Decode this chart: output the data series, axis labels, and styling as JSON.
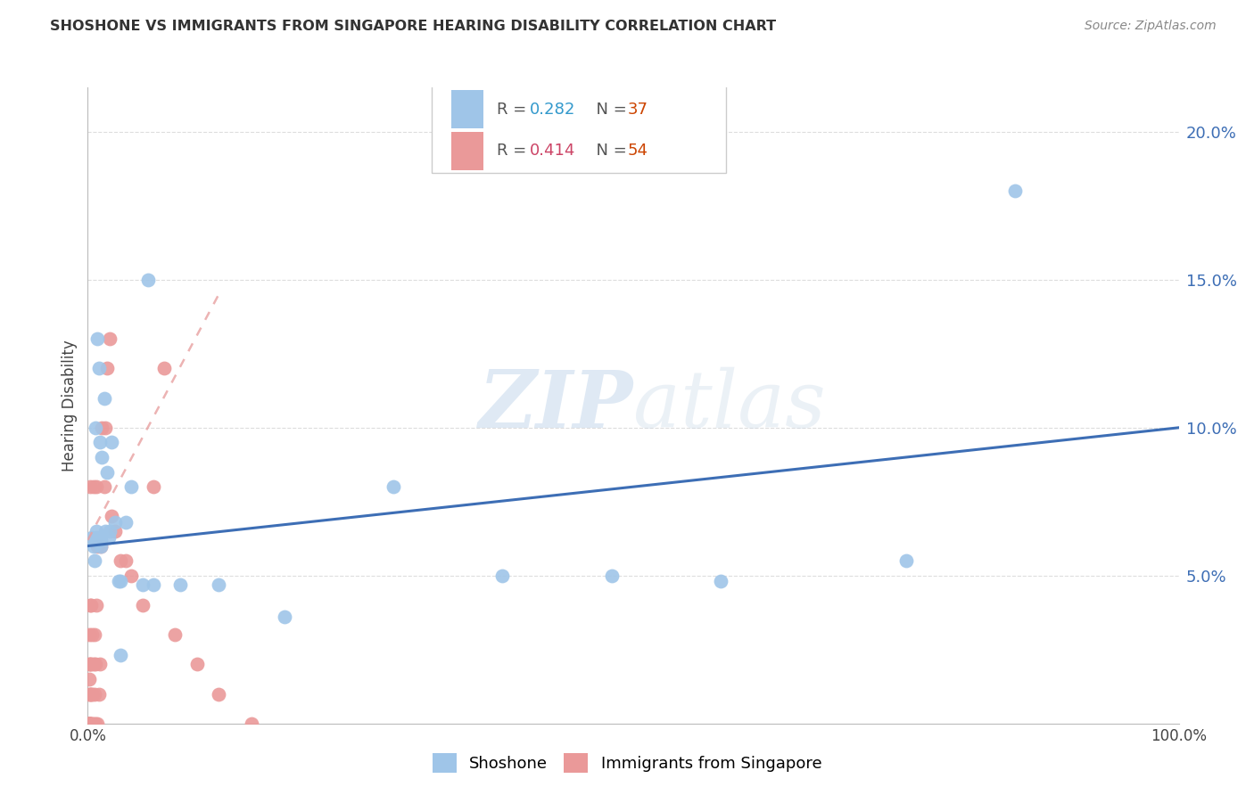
{
  "title": "SHOSHONE VS IMMIGRANTS FROM SINGAPORE HEARING DISABILITY CORRELATION CHART",
  "source": "Source: ZipAtlas.com",
  "ylabel": "Hearing Disability",
  "xlim": [
    0,
    1.0
  ],
  "ylim": [
    0,
    0.215
  ],
  "yticks": [
    0.05,
    0.1,
    0.15,
    0.2
  ],
  "ytick_labels": [
    "5.0%",
    "10.0%",
    "15.0%",
    "20.0%"
  ],
  "shoshone_color": "#9fc5e8",
  "singapore_color": "#ea9999",
  "shoshone_line_color": "#3d6eb5",
  "singapore_line_color": "#d5a0a0",
  "legend_shoshone_R": "0.282",
  "legend_shoshone_N": "37",
  "legend_singapore_R": "0.414",
  "legend_singapore_N": "54",
  "watermark_zip": "ZIP",
  "watermark_atlas": "atlas",
  "shoshone_x": [
    0.004,
    0.005,
    0.006,
    0.007,
    0.008,
    0.009,
    0.01,
    0.011,
    0.012,
    0.013,
    0.015,
    0.016,
    0.018,
    0.02,
    0.022,
    0.025,
    0.028,
    0.03,
    0.035,
    0.04,
    0.05,
    0.06,
    0.085,
    0.12,
    0.18,
    0.28,
    0.38,
    0.48,
    0.58,
    0.75,
    0.006,
    0.008,
    0.012,
    0.019,
    0.03,
    0.055,
    0.85
  ],
  "shoshone_y": [
    0.063,
    0.06,
    0.062,
    0.1,
    0.063,
    0.13,
    0.12,
    0.095,
    0.06,
    0.09,
    0.11,
    0.065,
    0.085,
    0.065,
    0.095,
    0.068,
    0.048,
    0.048,
    0.068,
    0.08,
    0.047,
    0.047,
    0.047,
    0.047,
    0.036,
    0.08,
    0.05,
    0.05,
    0.048,
    0.055,
    0.055,
    0.065,
    0.062,
    0.063,
    0.023,
    0.15,
    0.18
  ],
  "singapore_x": [
    0.001,
    0.001,
    0.001,
    0.001,
    0.001,
    0.001,
    0.001,
    0.001,
    0.001,
    0.001,
    0.002,
    0.002,
    0.002,
    0.002,
    0.002,
    0.002,
    0.003,
    0.003,
    0.003,
    0.003,
    0.004,
    0.004,
    0.004,
    0.005,
    0.005,
    0.005,
    0.006,
    0.006,
    0.007,
    0.007,
    0.008,
    0.008,
    0.009,
    0.009,
    0.01,
    0.011,
    0.012,
    0.013,
    0.015,
    0.016,
    0.018,
    0.02,
    0.022,
    0.025,
    0.03,
    0.035,
    0.04,
    0.05,
    0.06,
    0.07,
    0.08,
    0.1,
    0.12,
    0.15
  ],
  "singapore_y": [
    0.0,
    0.0,
    0.0,
    0.0,
    0.0,
    0.0,
    0.01,
    0.015,
    0.02,
    0.03,
    0.0,
    0.0,
    0.01,
    0.02,
    0.04,
    0.08,
    0.0,
    0.01,
    0.02,
    0.04,
    0.0,
    0.01,
    0.03,
    0.0,
    0.02,
    0.08,
    0.01,
    0.03,
    0.0,
    0.02,
    0.04,
    0.08,
    0.0,
    0.06,
    0.01,
    0.02,
    0.06,
    0.1,
    0.08,
    0.1,
    0.12,
    0.13,
    0.07,
    0.065,
    0.055,
    0.055,
    0.05,
    0.04,
    0.08,
    0.12,
    0.03,
    0.02,
    0.01,
    0.0
  ],
  "shoshone_trend": [
    0.0,
    1.0,
    0.06,
    0.1
  ],
  "singapore_trend": [
    0.0,
    0.12,
    0.062,
    0.145
  ]
}
